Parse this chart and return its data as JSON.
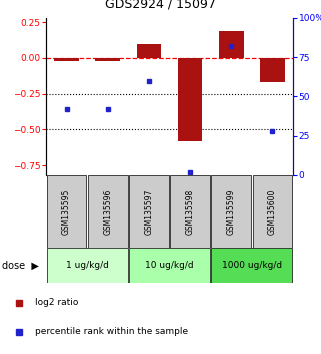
{
  "title": "GDS2924 / 15097",
  "samples": [
    "GSM135595",
    "GSM135596",
    "GSM135597",
    "GSM135598",
    "GSM135599",
    "GSM135600"
  ],
  "log2_ratio": [
    -0.02,
    -0.02,
    0.1,
    -0.58,
    0.19,
    -0.17
  ],
  "percentile_rank": [
    42,
    42,
    60,
    2,
    82,
    28
  ],
  "bar_color": "#aa1111",
  "dot_color": "#2222cc",
  "dose_groups": [
    {
      "label": "1 ug/kg/d",
      "samples": [
        0,
        1
      ],
      "color": "#ccffcc"
    },
    {
      "label": "10 ug/kg/d",
      "samples": [
        2,
        3
      ],
      "color": "#aaffaa"
    },
    {
      "label": "1000 ug/kg/d",
      "samples": [
        4,
        5
      ],
      "color": "#55dd55"
    }
  ],
  "ylim_left": [
    -0.82,
    0.28
  ],
  "ylim_right": [
    0,
    100
  ],
  "yticks_left": [
    0.25,
    0.0,
    -0.25,
    -0.5,
    -0.75
  ],
  "yticks_right": [
    100,
    75,
    50,
    25,
    0
  ],
  "hline_y": 0.0,
  "dotted_lines": [
    -0.25,
    -0.5
  ],
  "legend_red": "log2 ratio",
  "legend_blue": "percentile rank within the sample",
  "sample_box_color": "#cccccc",
  "dose_arrow_label": "dose"
}
